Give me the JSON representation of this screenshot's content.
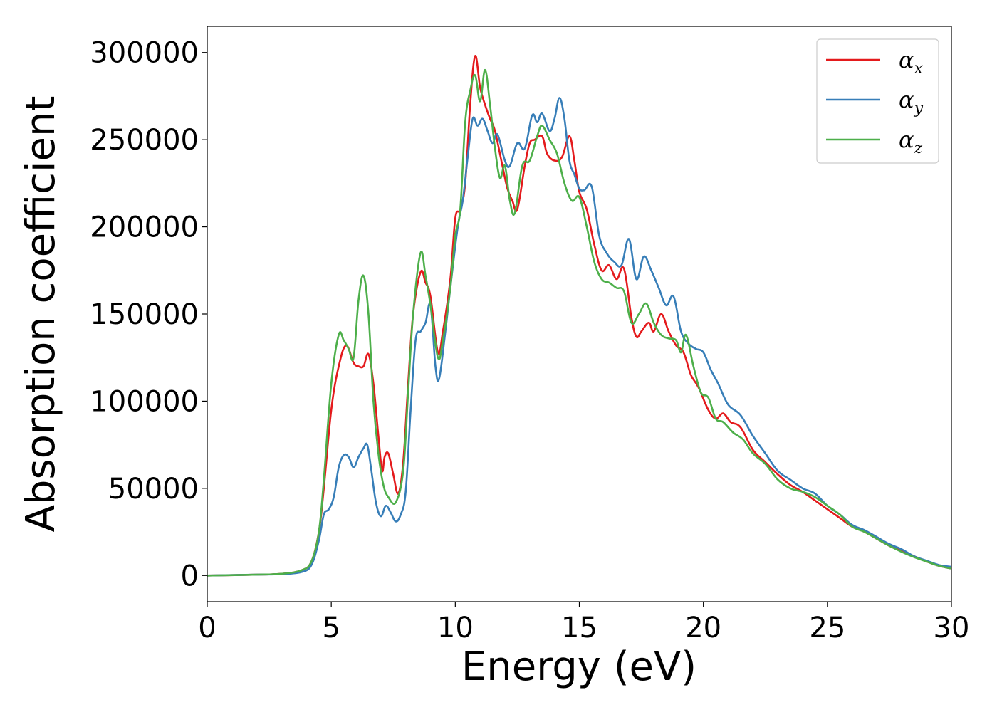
{
  "chart_data": {
    "type": "line",
    "title": "",
    "xlabel": "Energy (eV)",
    "ylabel": "Absorption coefficient",
    "xlim": [
      0,
      30
    ],
    "ylim": [
      -15000,
      315000
    ],
    "xticks": [
      0,
      5,
      10,
      15,
      20,
      25,
      30
    ],
    "yticks": [
      0,
      50000,
      100000,
      150000,
      200000,
      250000,
      300000
    ],
    "grid": false,
    "legend_position": "top-right",
    "series": [
      {
        "name": "α_x",
        "symbol": "α",
        "subscript": "x",
        "color": "#e41a1c",
        "points": [
          [
            0,
            0
          ],
          [
            2,
            500
          ],
          [
            3,
            1000
          ],
          [
            3.8,
            3000
          ],
          [
            4.2,
            8000
          ],
          [
            4.5,
            25000
          ],
          [
            4.7,
            50000
          ],
          [
            5.0,
            95000
          ],
          [
            5.3,
            120000
          ],
          [
            5.6,
            132000
          ],
          [
            5.9,
            122000
          ],
          [
            6.1,
            120000
          ],
          [
            6.3,
            120000
          ],
          [
            6.5,
            127000
          ],
          [
            6.7,
            110000
          ],
          [
            6.9,
            80000
          ],
          [
            7.05,
            60000
          ],
          [
            7.15,
            68000
          ],
          [
            7.3,
            70000
          ],
          [
            7.5,
            58000
          ],
          [
            7.7,
            47000
          ],
          [
            7.9,
            65000
          ],
          [
            8.1,
            110000
          ],
          [
            8.3,
            150000
          ],
          [
            8.6,
            174000
          ],
          [
            8.8,
            168000
          ],
          [
            9.0,
            160000
          ],
          [
            9.3,
            128000
          ],
          [
            9.5,
            140000
          ],
          [
            9.8,
            170000
          ],
          [
            10.0,
            205000
          ],
          [
            10.2,
            210000
          ],
          [
            10.4,
            225000
          ],
          [
            10.6,
            270000
          ],
          [
            10.8,
            298000
          ],
          [
            11.0,
            280000
          ],
          [
            11.2,
            270000
          ],
          [
            11.4,
            262000
          ],
          [
            11.6,
            255000
          ],
          [
            11.9,
            235000
          ],
          [
            12.1,
            222000
          ],
          [
            12.3,
            215000
          ],
          [
            12.5,
            210000
          ],
          [
            12.8,
            235000
          ],
          [
            13.0,
            248000
          ],
          [
            13.2,
            250000
          ],
          [
            13.5,
            252000
          ],
          [
            13.7,
            242000
          ],
          [
            14.0,
            238000
          ],
          [
            14.3,
            240000
          ],
          [
            14.6,
            252000
          ],
          [
            14.8,
            238000
          ],
          [
            15.0,
            220000
          ],
          [
            15.3,
            210000
          ],
          [
            15.6,
            190000
          ],
          [
            15.9,
            175000
          ],
          [
            16.2,
            178000
          ],
          [
            16.5,
            170000
          ],
          [
            16.8,
            176000
          ],
          [
            17.1,
            148000
          ],
          [
            17.3,
            137000
          ],
          [
            17.5,
            140000
          ],
          [
            17.8,
            145000
          ],
          [
            18.0,
            140000
          ],
          [
            18.3,
            150000
          ],
          [
            18.6,
            140000
          ],
          [
            18.9,
            132000
          ],
          [
            19.2,
            128000
          ],
          [
            19.5,
            115000
          ],
          [
            19.8,
            108000
          ],
          [
            20.2,
            95000
          ],
          [
            20.5,
            90000
          ],
          [
            20.8,
            93000
          ],
          [
            21.1,
            88000
          ],
          [
            21.5,
            85000
          ],
          [
            22.0,
            72000
          ],
          [
            22.5,
            65000
          ],
          [
            23.0,
            58000
          ],
          [
            23.5,
            52000
          ],
          [
            24.0,
            48000
          ],
          [
            24.5,
            43000
          ],
          [
            25.0,
            38000
          ],
          [
            25.5,
            33000
          ],
          [
            26.0,
            28000
          ],
          [
            26.5,
            25000
          ],
          [
            27.0,
            21000
          ],
          [
            27.5,
            17000
          ],
          [
            28.0,
            14000
          ],
          [
            28.5,
            11000
          ],
          [
            29.0,
            8000
          ],
          [
            29.5,
            5500
          ],
          [
            30,
            4000
          ]
        ]
      },
      {
        "name": "α_y",
        "symbol": "α",
        "subscript": "y",
        "color": "#377eb8",
        "points": [
          [
            0,
            0
          ],
          [
            2,
            500
          ],
          [
            3,
            800
          ],
          [
            3.8,
            2000
          ],
          [
            4.2,
            6000
          ],
          [
            4.5,
            20000
          ],
          [
            4.7,
            35000
          ],
          [
            4.9,
            38000
          ],
          [
            5.1,
            45000
          ],
          [
            5.3,
            62000
          ],
          [
            5.5,
            69000
          ],
          [
            5.7,
            68000
          ],
          [
            5.9,
            62000
          ],
          [
            6.1,
            68000
          ],
          [
            6.3,
            73000
          ],
          [
            6.45,
            75000
          ],
          [
            6.6,
            62000
          ],
          [
            6.8,
            42000
          ],
          [
            7.0,
            34000
          ],
          [
            7.2,
            40000
          ],
          [
            7.4,
            36000
          ],
          [
            7.6,
            31000
          ],
          [
            7.8,
            35000
          ],
          [
            8.0,
            48000
          ],
          [
            8.2,
            95000
          ],
          [
            8.4,
            135000
          ],
          [
            8.6,
            140000
          ],
          [
            8.8,
            145000
          ],
          [
            9.0,
            155000
          ],
          [
            9.2,
            120000
          ],
          [
            9.35,
            113000
          ],
          [
            9.6,
            140000
          ],
          [
            9.8,
            165000
          ],
          [
            10.1,
            200000
          ],
          [
            10.3,
            215000
          ],
          [
            10.5,
            240000
          ],
          [
            10.7,
            262000
          ],
          [
            10.9,
            258000
          ],
          [
            11.1,
            262000
          ],
          [
            11.3,
            255000
          ],
          [
            11.5,
            248000
          ],
          [
            11.7,
            253000
          ],
          [
            12.0,
            238000
          ],
          [
            12.2,
            235000
          ],
          [
            12.5,
            248000
          ],
          [
            12.8,
            245000
          ],
          [
            13.1,
            264000
          ],
          [
            13.3,
            260000
          ],
          [
            13.5,
            265000
          ],
          [
            13.8,
            255000
          ],
          [
            14.0,
            262000
          ],
          [
            14.2,
            274000
          ],
          [
            14.4,
            262000
          ],
          [
            14.6,
            238000
          ],
          [
            14.8,
            230000
          ],
          [
            15.0,
            222000
          ],
          [
            15.2,
            221000
          ],
          [
            15.5,
            223000
          ],
          [
            15.8,
            195000
          ],
          [
            16.1,
            185000
          ],
          [
            16.4,
            180000
          ],
          [
            16.7,
            178000
          ],
          [
            17.0,
            193000
          ],
          [
            17.3,
            170000
          ],
          [
            17.6,
            183000
          ],
          [
            17.9,
            175000
          ],
          [
            18.2,
            165000
          ],
          [
            18.5,
            155000
          ],
          [
            18.8,
            160000
          ],
          [
            19.1,
            140000
          ],
          [
            19.4,
            133000
          ],
          [
            19.7,
            130000
          ],
          [
            20.0,
            128000
          ],
          [
            20.3,
            118000
          ],
          [
            20.6,
            110000
          ],
          [
            21.0,
            98000
          ],
          [
            21.5,
            92000
          ],
          [
            22.0,
            80000
          ],
          [
            22.5,
            70000
          ],
          [
            23.0,
            60000
          ],
          [
            23.5,
            55000
          ],
          [
            24.0,
            50000
          ],
          [
            24.5,
            47000
          ],
          [
            25.0,
            40000
          ],
          [
            25.5,
            35000
          ],
          [
            26.0,
            29000
          ],
          [
            26.5,
            26000
          ],
          [
            27.0,
            22000
          ],
          [
            27.5,
            18000
          ],
          [
            28.0,
            15000
          ],
          [
            28.5,
            11000
          ],
          [
            29.0,
            8500
          ],
          [
            29.5,
            6000
          ],
          [
            30,
            5000
          ]
        ]
      },
      {
        "name": "α_z",
        "symbol": "α",
        "subscript": "z",
        "color": "#4daf4a",
        "points": [
          [
            0,
            0
          ],
          [
            2,
            500
          ],
          [
            3,
            1000
          ],
          [
            3.8,
            3000
          ],
          [
            4.2,
            8000
          ],
          [
            4.5,
            25000
          ],
          [
            4.7,
            55000
          ],
          [
            5.0,
            110000
          ],
          [
            5.3,
            138000
          ],
          [
            5.5,
            135000
          ],
          [
            5.7,
            130000
          ],
          [
            5.9,
            125000
          ],
          [
            6.1,
            158000
          ],
          [
            6.3,
            172000
          ],
          [
            6.5,
            150000
          ],
          [
            6.7,
            100000
          ],
          [
            6.9,
            70000
          ],
          [
            7.1,
            52000
          ],
          [
            7.3,
            45000
          ],
          [
            7.6,
            42000
          ],
          [
            7.9,
            60000
          ],
          [
            8.1,
            105000
          ],
          [
            8.3,
            150000
          ],
          [
            8.6,
            185000
          ],
          [
            8.8,
            172000
          ],
          [
            9.0,
            155000
          ],
          [
            9.3,
            125000
          ],
          [
            9.5,
            135000
          ],
          [
            9.8,
            165000
          ],
          [
            10.0,
            195000
          ],
          [
            10.2,
            210000
          ],
          [
            10.4,
            260000
          ],
          [
            10.6,
            278000
          ],
          [
            10.8,
            287000
          ],
          [
            11.0,
            272000
          ],
          [
            11.2,
            290000
          ],
          [
            11.4,
            270000
          ],
          [
            11.6,
            245000
          ],
          [
            11.8,
            228000
          ],
          [
            12.0,
            235000
          ],
          [
            12.2,
            215000
          ],
          [
            12.4,
            208000
          ],
          [
            12.7,
            235000
          ],
          [
            13.0,
            238000
          ],
          [
            13.3,
            252000
          ],
          [
            13.5,
            258000
          ],
          [
            13.8,
            250000
          ],
          [
            14.1,
            242000
          ],
          [
            14.4,
            225000
          ],
          [
            14.7,
            215000
          ],
          [
            15.0,
            217000
          ],
          [
            15.3,
            200000
          ],
          [
            15.6,
            180000
          ],
          [
            15.9,
            170000
          ],
          [
            16.2,
            168000
          ],
          [
            16.5,
            165000
          ],
          [
            16.8,
            163000
          ],
          [
            17.1,
            145000
          ],
          [
            17.4,
            150000
          ],
          [
            17.7,
            156000
          ],
          [
            18.0,
            145000
          ],
          [
            18.3,
            138000
          ],
          [
            18.6,
            136000
          ],
          [
            18.9,
            135000
          ],
          [
            19.1,
            128000
          ],
          [
            19.3,
            138000
          ],
          [
            19.6,
            120000
          ],
          [
            19.9,
            105000
          ],
          [
            20.2,
            102000
          ],
          [
            20.5,
            90000
          ],
          [
            20.8,
            88000
          ],
          [
            21.2,
            82000
          ],
          [
            21.6,
            78000
          ],
          [
            22.0,
            70000
          ],
          [
            22.5,
            64000
          ],
          [
            23.0,
            55000
          ],
          [
            23.5,
            50000
          ],
          [
            24.0,
            48000
          ],
          [
            24.5,
            45000
          ],
          [
            25.0,
            40000
          ],
          [
            25.5,
            35000
          ],
          [
            26.0,
            28000
          ],
          [
            26.5,
            25000
          ],
          [
            27.0,
            21000
          ],
          [
            27.5,
            17000
          ],
          [
            28.0,
            13500
          ],
          [
            28.5,
            10500
          ],
          [
            29.0,
            8000
          ],
          [
            29.5,
            5500
          ],
          [
            30,
            4000
          ]
        ]
      }
    ]
  }
}
